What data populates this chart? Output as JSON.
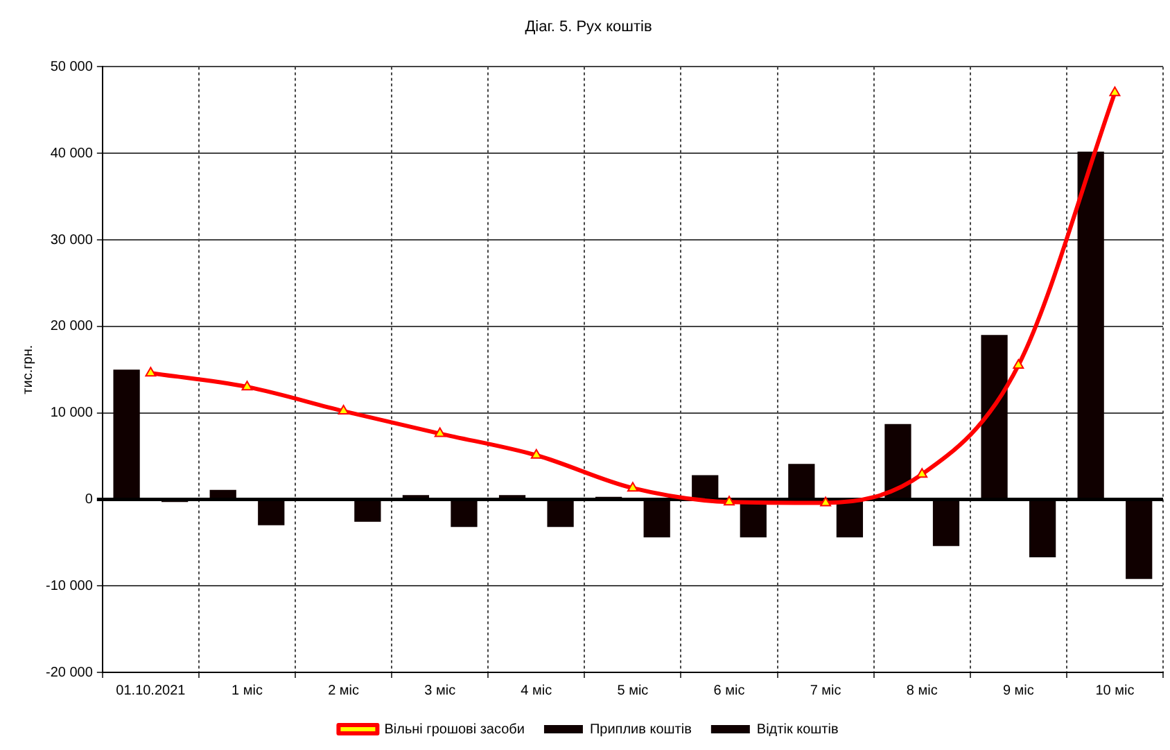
{
  "chart_data": {
    "type": "bar",
    "title": "Діаг. 5. Рух коштів",
    "ylabel": "тис.грн.",
    "categories": [
      "01.10.2021",
      "1 міс",
      "2 міс",
      "3 міс",
      "4 міс",
      "5 міс",
      "6 міс",
      "7 міс",
      "8 міс",
      "9 міс",
      "10 міс"
    ],
    "series": [
      {
        "name": "Приплив коштів",
        "color": "#100000",
        "values": [
          15000,
          1100,
          0,
          500,
          500,
          300,
          2800,
          4100,
          8700,
          19000,
          40200
        ]
      },
      {
        "name": "Відтік коштів",
        "color": "#100000",
        "values": [
          -300,
          -3000,
          -2600,
          -3200,
          -3200,
          -4400,
          -4400,
          -4400,
          -5400,
          -6700,
          -9200
        ]
      },
      {
        "name": "Вільні грошові засоби",
        "type": "line",
        "color": "#ff0000",
        "marker": "triangle",
        "values": [
          14600,
          13000,
          10200,
          7600,
          5100,
          1300,
          -300,
          -400,
          2900,
          15500,
          47000
        ]
      }
    ],
    "ylim": [
      -20000,
      50000
    ],
    "yticks": [
      {
        "value": -20000,
        "label": "-20 000"
      },
      {
        "value": -10000,
        "label": "-10 000"
      },
      0,
      {
        "value": 10000,
        "label": "10 000"
      },
      {
        "value": 20000,
        "label": "20 000"
      },
      {
        "value": 30000,
        "label": "30 000"
      },
      {
        "value": 40000,
        "label": "40 000"
      },
      {
        "value": 50000,
        "label": "50 000"
      }
    ],
    "grid": true,
    "legend": "bottom"
  }
}
